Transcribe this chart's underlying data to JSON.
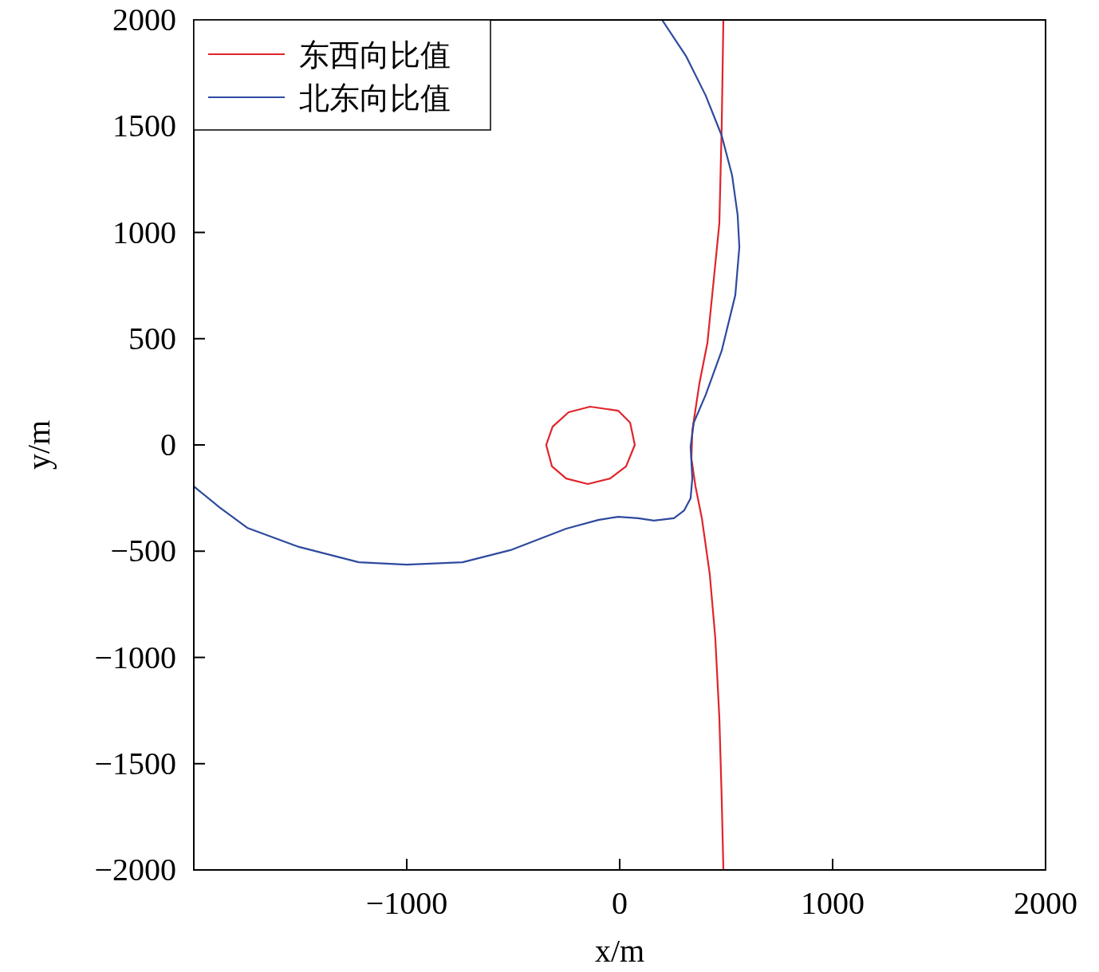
{
  "chart_data": {
    "type": "line",
    "xlabel": "x/m",
    "ylabel": "y/m",
    "xlim": [
      -2000,
      2000
    ],
    "ylim": [
      -2000,
      2000
    ],
    "xticks": [
      {
        "value": -1000,
        "label": "−1000"
      },
      0,
      1000,
      2000
    ],
    "yticks": [
      {
        "value": -2000,
        "label": "−2000"
      },
      {
        "value": -1500,
        "label": "−1500"
      },
      {
        "value": -1000,
        "label": "−1000"
      },
      {
        "value": -500,
        "label": "−500"
      },
      0,
      500,
      1000,
      1500,
      2000
    ],
    "grid": false,
    "legend": "top left",
    "marker": "none",
    "line_style": "solid",
    "series": [
      {
        "name": "东西向比值",
        "color": "#e0242b",
        "x": [
          487,
          479,
          468,
          442,
          412,
          375,
          341,
          337,
          356,
          386,
          423,
          449,
          468,
          479,
          487,
          null,
          71,
          49,
          -7,
          -139,
          -240,
          -315,
          -345,
          null,
          -345,
          -318,
          -251,
          -150,
          -45,
          30,
          71
        ],
        "values": [
          2000,
          1493,
          1043,
          780,
          480,
          293,
          68,
          -64,
          -195,
          -345,
          -608,
          -908,
          -1283,
          -1659,
          -2000,
          null,
          0,
          105,
          161,
          180,
          154,
          86,
          0,
          null,
          0,
          -101,
          -158,
          -184,
          -158,
          -101,
          0
        ]
      },
      {
        "name": "北东向比值",
        "color": "#2e4a9e",
        "x": [
          199,
          311,
          404,
          479,
          528,
          554,
          562,
          543,
          479,
          404,
          348,
          333,
          341,
          333,
          303,
          255,
          161,
          86,
          -7,
          -101,
          -251,
          -513,
          -738,
          -1000,
          -1225,
          -1506,
          -1749,
          -1880,
          -2000
        ],
        "values": [
          2000,
          1831,
          1644,
          1456,
          1268,
          1081,
          931,
          705,
          443,
          236,
          105,
          -8,
          -158,
          -251,
          -308,
          -345,
          -356,
          -345,
          -338,
          -353,
          -394,
          -495,
          -552,
          -563,
          -552,
          -480,
          -390,
          -293,
          -195
        ]
      }
    ]
  }
}
